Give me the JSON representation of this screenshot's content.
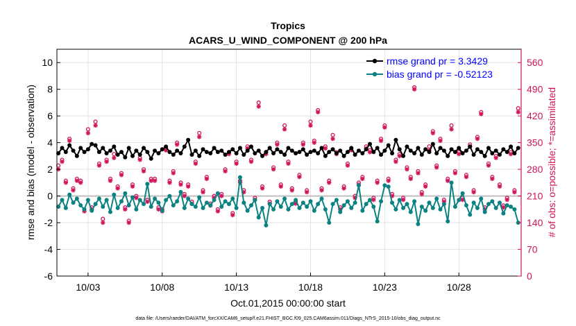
{
  "chart_data": {
    "type": "line",
    "title": "Tropics",
    "subtitle": "ACARS_U_WIND_COMPONENT @ 200 hPa",
    "xlabel": "Oct.01,2015 00:00:00 start",
    "ylabel": "rmse and bias (model - observation)",
    "y2label": "# of obs: o=possible; *=assimilated",
    "footnote": "data file: /Users/raeder/DAI/ATM_forcXX/CAM6_setup/f.e21.FHIST_BGC.f09_025.CAM6assim.011/Diags_NTrS_2015-10/obs_diag_output.nc",
    "xlim": [
      0.9,
      32.2
    ],
    "ylim": [
      -6,
      11
    ],
    "y2lim": [
      0,
      595
    ],
    "x_ticks": [
      3,
      8,
      13,
      18,
      23,
      28
    ],
    "x_ticklabels": [
      "10/03",
      "10/08",
      "10/13",
      "10/18",
      "10/23",
      "10/28"
    ],
    "y_ticks": [
      -6,
      -4,
      -2,
      0,
      2,
      4,
      6,
      8,
      10
    ],
    "y_ticklabels": [
      "-6",
      "-4",
      "-2",
      "0",
      "2",
      "4",
      "6",
      "8",
      "10"
    ],
    "y2_ticks": [
      0,
      70,
      140,
      210,
      280,
      350,
      420,
      490,
      560
    ],
    "y2_ticklabels": [
      "0",
      "70",
      "140",
      "210",
      "280",
      "350",
      "420",
      "490",
      "560"
    ],
    "grid": true,
    "legend_position": "top-right",
    "colors": {
      "rmse": "#000000",
      "bias": "#0b8282",
      "obs": "#d0135a",
      "zero": "#bfbfbf",
      "grid": "#e3e3e3"
    },
    "series": [
      {
        "name": "rmse grand pr = 3.3429",
        "x": [
          1.0,
          1.25,
          1.5,
          1.75,
          2.0,
          2.25,
          2.5,
          2.75,
          3.0,
          3.25,
          3.5,
          3.75,
          4.0,
          4.25,
          4.5,
          4.75,
          5.0,
          5.25,
          5.5,
          5.75,
          6.0,
          6.25,
          6.5,
          6.75,
          7.0,
          7.25,
          7.5,
          7.75,
          8.0,
          8.25,
          8.5,
          8.75,
          9.0,
          9.25,
          9.5,
          9.75,
          10.0,
          10.25,
          10.5,
          10.75,
          11.0,
          11.25,
          11.5,
          11.75,
          12.0,
          12.25,
          12.5,
          12.75,
          13.0,
          13.25,
          13.5,
          13.75,
          14.0,
          14.25,
          14.5,
          14.75,
          15.0,
          15.25,
          15.5,
          15.75,
          16.0,
          16.25,
          16.5,
          16.75,
          17.0,
          17.25,
          17.5,
          17.75,
          18.0,
          18.25,
          18.5,
          18.75,
          19.0,
          19.25,
          19.5,
          19.75,
          20.0,
          20.25,
          20.5,
          20.75,
          21.0,
          21.25,
          21.5,
          21.75,
          22.0,
          22.25,
          22.5,
          22.75,
          23.0,
          23.25,
          23.5,
          23.75,
          24.0,
          24.25,
          24.5,
          24.75,
          25.0,
          25.25,
          25.5,
          25.75,
          26.0,
          26.25,
          26.5,
          26.75,
          27.0,
          27.25,
          27.5,
          27.75,
          28.0,
          28.25,
          28.5,
          28.75,
          29.0,
          29.25,
          29.5,
          29.75,
          30.0,
          30.25,
          30.5,
          30.75,
          31.0,
          31.25,
          31.5,
          31.75,
          32.0
        ],
        "values": [
          3.2,
          3.6,
          3.3,
          3.8,
          3.4,
          3.0,
          3.6,
          3.3,
          3.5,
          3.9,
          3.8,
          3.3,
          3.6,
          3.2,
          3.4,
          3.7,
          3.1,
          3.3,
          2.9,
          3.6,
          3.0,
          3.4,
          3.1,
          3.6,
          3.3,
          2.8,
          3.4,
          3.2,
          3.5,
          3.7,
          3.3,
          3.1,
          3.4,
          3.2,
          3.7,
          4.2,
          3.1,
          3.4,
          3.0,
          3.5,
          3.3,
          3.2,
          3.6,
          3.3,
          3.4,
          3.1,
          3.3,
          3.5,
          3.2,
          3.6,
          3.1,
          3.4,
          3.7,
          3.2,
          3.4,
          3.0,
          3.3,
          3.6,
          3.2,
          3.5,
          3.3,
          3.1,
          3.6,
          3.4,
          3.2,
          3.3,
          3.5,
          3.1,
          3.3,
          3.4,
          3.2,
          3.6,
          3.0,
          3.3,
          3.5,
          3.2,
          3.4,
          3.0,
          3.3,
          3.6,
          3.1,
          3.4,
          3.2,
          3.5,
          3.9,
          3.3,
          3.6,
          3.1,
          3.4,
          3.8,
          3.2,
          4.2,
          3.5,
          3.0,
          3.7,
          3.4,
          3.2,
          3.6,
          3.1,
          3.5,
          3.3,
          3.9,
          3.2,
          3.6,
          3.4,
          3.0,
          3.5,
          3.3,
          3.6,
          3.2,
          3.4,
          3.7,
          3.1,
          3.5,
          3.3,
          3.0,
          3.6,
          3.2,
          3.4,
          3.1,
          3.5,
          3.3,
          3.7,
          3.2,
          3.6
        ]
      },
      {
        "name": "bias grand pr = -0.52123",
        "x": [
          1.0,
          1.25,
          1.5,
          1.75,
          2.0,
          2.25,
          2.5,
          2.75,
          3.0,
          3.25,
          3.5,
          3.75,
          4.0,
          4.25,
          4.5,
          4.75,
          5.0,
          5.25,
          5.5,
          5.75,
          6.0,
          6.25,
          6.5,
          6.75,
          7.0,
          7.25,
          7.5,
          7.75,
          8.0,
          8.25,
          8.5,
          8.75,
          9.0,
          9.25,
          9.5,
          9.75,
          10.0,
          10.25,
          10.5,
          10.75,
          11.0,
          11.25,
          11.5,
          11.75,
          12.0,
          12.25,
          12.5,
          12.75,
          13.0,
          13.25,
          13.5,
          13.75,
          14.0,
          14.25,
          14.5,
          14.75,
          15.0,
          15.25,
          15.5,
          15.75,
          16.0,
          16.25,
          16.5,
          16.75,
          17.0,
          17.25,
          17.5,
          17.75,
          18.0,
          18.25,
          18.5,
          18.75,
          19.0,
          19.25,
          19.5,
          19.75,
          20.0,
          20.25,
          20.5,
          20.75,
          21.0,
          21.25,
          21.5,
          21.75,
          22.0,
          22.25,
          22.5,
          22.75,
          23.0,
          23.25,
          23.5,
          23.75,
          24.0,
          24.25,
          24.5,
          24.75,
          25.0,
          25.25,
          25.5,
          25.75,
          26.0,
          26.25,
          26.5,
          26.75,
          27.0,
          27.25,
          27.5,
          27.75,
          28.0,
          28.25,
          28.5,
          28.75,
          29.0,
          29.25,
          29.5,
          29.75,
          30.0,
          30.25,
          30.5,
          30.75,
          31.0,
          31.25,
          31.5,
          31.75,
          32.0
        ],
        "values": [
          -0.8,
          -0.3,
          -0.9,
          0.1,
          -0.5,
          -0.2,
          -0.7,
          -1.0,
          -0.3,
          -1.1,
          -0.6,
          -0.2,
          -0.8,
          -0.3,
          -1.2,
          0.1,
          -0.9,
          -0.4,
          0.2,
          -0.7,
          -0.1,
          -1.0,
          -0.3,
          -0.6,
          0.9,
          -0.8,
          -0.2,
          -0.5,
          -1.1,
          -0.3,
          0.0,
          -0.7,
          -0.4,
          0.3,
          -0.9,
          -0.2,
          -0.6,
          -0.8,
          -0.1,
          -0.9,
          -0.5,
          -0.7,
          -0.3,
          0.2,
          -0.8,
          -0.4,
          -0.6,
          -0.2,
          -0.9,
          1.4,
          -0.5,
          -1.1,
          -0.7,
          -0.3,
          -1.6,
          -0.9,
          -2.2,
          -0.6,
          -1.0,
          -0.4,
          -0.8,
          -0.2,
          -1.0,
          -0.6,
          -0.3,
          -0.9,
          -0.5,
          -0.8,
          -0.4,
          -1.1,
          -0.6,
          -0.2,
          -1.0,
          -2.0,
          -0.6,
          -0.3,
          -1.2,
          -0.7,
          -0.4,
          -0.9,
          -0.5,
          0.8,
          -1.1,
          -0.6,
          -0.3,
          -0.8,
          -1.9,
          -0.4,
          0.8,
          0.7,
          -0.5,
          -1.0,
          -0.3,
          -0.9,
          -0.6,
          -1.2,
          -0.4,
          -2.1,
          -0.8,
          -1.1,
          -0.5,
          -0.9,
          -0.2,
          -1.0,
          -0.6,
          -1.9,
          1.0,
          -0.8,
          -0.3,
          0.2,
          -0.7,
          -1.4,
          -0.5,
          -0.9,
          -0.2,
          -1.2,
          -0.6,
          -0.4,
          -0.9,
          -0.5,
          -1.3,
          -0.7,
          -0.8,
          -1.0,
          -2.0
        ]
      }
    ],
    "obs_possible": {
      "x": [
        1.0,
        1.25,
        1.5,
        1.75,
        2.0,
        2.25,
        2.5,
        2.75,
        3.0,
        3.25,
        3.5,
        3.75,
        4.0,
        4.25,
        4.5,
        4.75,
        5.0,
        5.25,
        5.5,
        5.75,
        6.0,
        6.25,
        6.5,
        6.75,
        7.0,
        7.25,
        7.5,
        7.75,
        8.0,
        8.25,
        8.5,
        8.75,
        9.0,
        9.25,
        9.5,
        9.75,
        10.0,
        10.25,
        10.5,
        10.75,
        11.0,
        11.25,
        11.5,
        11.75,
        12.0,
        12.25,
        12.5,
        12.75,
        13.0,
        13.25,
        13.5,
        13.75,
        14.0,
        14.25,
        14.5,
        14.75,
        15.0,
        15.25,
        15.5,
        15.75,
        16.0,
        16.25,
        16.5,
        16.75,
        17.0,
        17.25,
        17.5,
        17.75,
        18.0,
        18.25,
        18.5,
        18.75,
        19.0,
        19.25,
        19.5,
        19.75,
        20.0,
        20.25,
        20.5,
        20.75,
        21.0,
        21.25,
        21.5,
        21.75,
        22.0,
        22.25,
        22.5,
        22.75,
        23.0,
        23.25,
        23.5,
        23.75,
        24.0,
        24.25,
        24.5,
        24.75,
        25.0,
        25.25,
        25.5,
        25.75,
        26.0,
        26.25,
        26.5,
        26.75,
        27.0,
        27.25,
        27.5,
        27.75,
        28.0,
        28.25,
        28.5,
        28.75,
        29.0,
        29.25,
        29.5,
        29.75,
        30.0,
        30.25,
        30.5,
        30.75,
        31.0,
        31.25,
        31.5,
        31.75,
        32.0
      ],
      "values": [
        290,
        305,
        250,
        360,
        230,
        255,
        250,
        175,
        385,
        180,
        405,
        295,
        150,
        305,
        255,
        320,
        235,
        270,
        180,
        145,
        240,
        210,
        310,
        280,
        200,
        255,
        255,
        180,
        175,
        335,
        250,
        275,
        350,
        245,
        215,
        240,
        195,
        300,
        375,
        225,
        260,
        190,
        210,
        175,
        215,
        280,
        325,
        165,
        300,
        250,
        225,
        340,
        305,
        205,
        455,
        235,
        325,
        195,
        285,
        350,
        240,
        395,
        300,
        230,
        195,
        265,
        350,
        225,
        405,
        355,
        435,
        230,
        340,
        250,
        370,
        325,
        180,
        235,
        295,
        335,
        210,
        245,
        260,
        340,
        330,
        205,
        250,
        360,
        395,
        255,
        215,
        305,
        320,
        205,
        285,
        260,
        495,
        275,
        220,
        240,
        340,
        380,
        290,
        360,
        200,
        255,
        395,
        275,
        325,
        205,
        265,
        345,
        225,
        365,
        430,
        180,
        295,
        260,
        315,
        240,
        185,
        205,
        325,
        225,
        440
      ]
    },
    "obs_assimilated": {
      "x": [
        1.0,
        1.25,
        1.5,
        1.75,
        2.0,
        2.25,
        2.5,
        2.75,
        3.0,
        3.25,
        3.5,
        3.75,
        4.0,
        4.25,
        4.5,
        4.75,
        5.0,
        5.25,
        5.5,
        5.75,
        6.0,
        6.25,
        6.5,
        6.75,
        7.0,
        7.25,
        7.5,
        7.75,
        8.0,
        8.25,
        8.5,
        8.75,
        9.0,
        9.25,
        9.5,
        9.75,
        10.0,
        10.25,
        10.5,
        10.75,
        11.0,
        11.25,
        11.5,
        11.75,
        12.0,
        12.25,
        12.5,
        12.75,
        13.0,
        13.25,
        13.5,
        13.75,
        14.0,
        14.25,
        14.5,
        14.75,
        15.0,
        15.25,
        15.5,
        15.75,
        16.0,
        16.25,
        16.5,
        16.75,
        17.0,
        17.25,
        17.5,
        17.75,
        18.0,
        18.25,
        18.5,
        18.75,
        19.0,
        19.25,
        19.5,
        19.75,
        20.0,
        20.25,
        20.5,
        20.75,
        21.0,
        21.25,
        21.5,
        21.75,
        22.0,
        22.25,
        22.5,
        22.75,
        23.0,
        23.25,
        23.5,
        23.75,
        24.0,
        24.25,
        24.5,
        24.75,
        25.0,
        25.25,
        25.5,
        25.75,
        26.0,
        26.25,
        26.5,
        26.75,
        27.0,
        27.25,
        27.5,
        27.75,
        28.0,
        28.25,
        28.5,
        28.75,
        29.0,
        29.25,
        29.5,
        29.75,
        30.0,
        30.25,
        30.5,
        30.75,
        31.0,
        31.25,
        31.5,
        31.75,
        32.0
      ],
      "values": [
        280,
        300,
        245,
        355,
        225,
        250,
        245,
        170,
        375,
        175,
        395,
        290,
        140,
        300,
        250,
        310,
        230,
        265,
        175,
        140,
        235,
        205,
        305,
        275,
        195,
        250,
        250,
        175,
        170,
        330,
        245,
        270,
        345,
        240,
        210,
        235,
        190,
        295,
        365,
        220,
        255,
        185,
        205,
        170,
        210,
        275,
        320,
        160,
        295,
        245,
        220,
        335,
        300,
        200,
        445,
        230,
        320,
        190,
        280,
        345,
        235,
        385,
        295,
        225,
        190,
        260,
        345,
        220,
        395,
        350,
        430,
        225,
        335,
        245,
        360,
        320,
        175,
        230,
        290,
        330,
        205,
        240,
        255,
        335,
        325,
        200,
        245,
        355,
        390,
        250,
        210,
        300,
        315,
        200,
        280,
        255,
        490,
        270,
        215,
        235,
        330,
        375,
        285,
        355,
        195,
        250,
        385,
        270,
        320,
        200,
        260,
        340,
        220,
        360,
        425,
        175,
        290,
        255,
        310,
        235,
        180,
        200,
        320,
        220,
        430
      ]
    }
  }
}
